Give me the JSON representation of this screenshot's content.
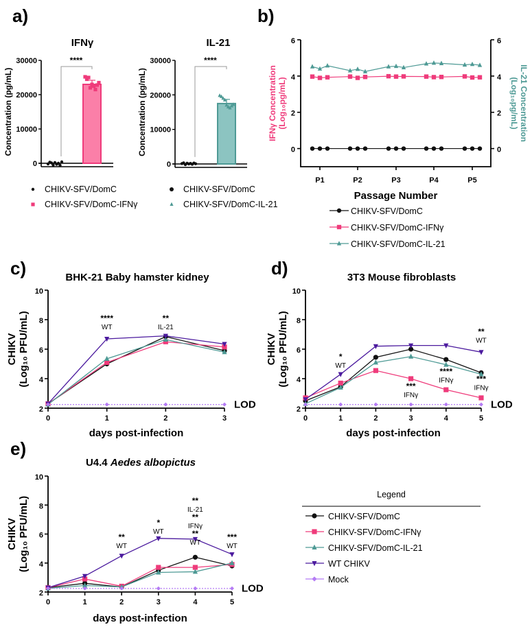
{
  "panels": [
    "a)",
    "b)",
    "c)",
    "d)",
    "e)"
  ],
  "colors": {
    "domc": "#111111",
    "ifng": "#ef3b7b",
    "il21": "#4e9a95",
    "wt": "#4b1a9e",
    "mock": "#b57cf5",
    "ifng_bar": "#fb7fa8",
    "il21_bar": "#8cc4c1"
  },
  "chart_data": [
    {
      "type": "bar",
      "title": "IFNγ",
      "ylabel": "Concentration (pg/mL)",
      "ylim": [
        -1000,
        30000
      ],
      "yticks": [
        "0",
        "10000",
        "20000",
        "30000"
      ],
      "categories": [
        "CHIKV-SFV/DomC",
        "CHIKV-SFV/DomC-IFNγ"
      ],
      "values": [
        0,
        23000
      ],
      "points": [
        [
          -200,
          300,
          100,
          -500,
          200,
          -300,
          0,
          -600,
          400
        ],
        [
          25200,
          24500,
          25000,
          22000,
          23000,
          22500,
          21500,
          22800,
          23500
        ]
      ],
      "significance": "****"
    },
    {
      "type": "bar",
      "title": "IL-21",
      "ylabel": "Concentration (pg/mL)",
      "ylim": [
        -1000,
        30000
      ],
      "yticks": [
        "0",
        "10000",
        "20000",
        "30000"
      ],
      "categories": [
        "CHIKV-SFV/DomC",
        "CHIKV-SFV/DomC-IL-21"
      ],
      "values": [
        0,
        17500
      ],
      "points": [
        [
          100,
          300,
          -200,
          200,
          0,
          150,
          -100,
          250,
          50
        ],
        [
          19800,
          19500,
          19000,
          18500,
          17000,
          16500,
          16200,
          16800,
          17200
        ]
      ],
      "significance": "****"
    },
    {
      "type": "line",
      "xlabel": "Passage Number",
      "ylabel_left": "IFNγ Concentration",
      "ylabel_left2": "(Log₁₀pg/mL)",
      "ylabel_right": "IL-21 Concentration",
      "ylabel_right2": "(Log₁₀pg/mL)",
      "ylim": [
        -1,
        6
      ],
      "yticks": [
        "0",
        "2",
        "4",
        "6"
      ],
      "categories": [
        "P1",
        "P2",
        "P3",
        "P4",
        "P5"
      ],
      "series": [
        {
          "name": "CHIKV-SFV/DomC",
          "replicates": [
            [
              0,
              0,
              0
            ],
            [
              0,
              0,
              0
            ],
            [
              0,
              0,
              0
            ],
            [
              0,
              0,
              0
            ],
            [
              0,
              0,
              0
            ]
          ]
        },
        {
          "name": "CHIKV-SFV/DomC-IFNγ",
          "replicates": [
            [
              3.97,
              3.9,
              3.93
            ],
            [
              3.97,
              3.9,
              3.95
            ],
            [
              3.99,
              3.97,
              3.98
            ],
            [
              3.97,
              3.94,
              3.95
            ],
            [
              3.98,
              3.92,
              3.93
            ]
          ]
        },
        {
          "name": "CHIKV-SFV/DomC-IL-21",
          "replicates": [
            [
              4.52,
              4.4,
              4.57
            ],
            [
              4.3,
              4.38,
              4.25
            ],
            [
              4.52,
              4.54,
              4.47
            ],
            [
              4.68,
              4.72,
              4.7
            ],
            [
              4.62,
              4.65,
              4.6
            ]
          ]
        }
      ]
    },
    {
      "type": "line",
      "title": "BHK-21 Baby hamster kidney",
      "xlabel": "days post-infection",
      "ylabel": "CHIKV",
      "ylabel2": "(Log₁₀ PFU/mL)",
      "ylim": [
        2,
        10
      ],
      "yticks": [
        "2",
        "4",
        "6",
        "8",
        "10"
      ],
      "x": [
        0,
        1,
        2,
        3
      ],
      "lod_label": "LOD",
      "series": [
        {
          "name": "CHIKV-SFV/DomC",
          "values": [
            2.3,
            5.0,
            6.85,
            5.9
          ]
        },
        {
          "name": "CHIKV-SFV/DomC-IFNγ",
          "values": [
            2.3,
            5.1,
            6.5,
            6.15
          ]
        },
        {
          "name": "CHIKV-SFV/DomC-IL-21",
          "values": [
            2.25,
            5.35,
            6.65,
            5.8
          ]
        },
        {
          "name": "WT CHIKV",
          "values": [
            2.3,
            6.7,
            6.9,
            6.35
          ]
        },
        {
          "name": "Mock",
          "values": [
            2.25,
            2.25,
            2.25,
            2.25
          ]
        }
      ],
      "annotations": [
        {
          "x": 1,
          "y": 7.9,
          "lines": [
            "****",
            "WT"
          ]
        },
        {
          "x": 2,
          "y": 7.9,
          "lines": [
            "**",
            "IL-21"
          ]
        }
      ]
    },
    {
      "type": "line",
      "title": "3T3 Mouse fibroblasts",
      "xlabel": "days post-infection",
      "ylabel": "CHIKV",
      "ylabel2": "(Log₁₀ PFU/mL)",
      "ylim": [
        2,
        10
      ],
      "yticks": [
        "2",
        "4",
        "6",
        "8",
        "10"
      ],
      "x": [
        0,
        1,
        2,
        3,
        4,
        5
      ],
      "lod_label": "LOD",
      "series": [
        {
          "name": "CHIKV-SFV/DomC",
          "values": [
            2.5,
            3.45,
            5.45,
            6.0,
            5.3,
            4.4
          ]
        },
        {
          "name": "CHIKV-SFV/DomC-IFNγ",
          "values": [
            2.7,
            3.7,
            4.55,
            4.0,
            3.25,
            2.7
          ]
        },
        {
          "name": "CHIKV-SFV/DomC-IL-21",
          "values": [
            2.3,
            3.4,
            5.1,
            5.5,
            4.95,
            4.3
          ]
        },
        {
          "name": "WT CHIKV",
          "values": [
            2.6,
            4.3,
            6.2,
            6.25,
            6.25,
            5.8
          ]
        },
        {
          "name": "Mock",
          "values": [
            2.25,
            2.25,
            2.25,
            2.25,
            2.25,
            2.25
          ]
        }
      ],
      "annotations": [
        {
          "x": 1,
          "y": 5.3,
          "lines": [
            "*",
            "WT"
          ]
        },
        {
          "x": 3,
          "y": 3.3,
          "lines": [
            "***",
            "IFNγ"
          ]
        },
        {
          "x": 4,
          "y": 4.3,
          "lines": [
            "****",
            "IFNγ"
          ]
        },
        {
          "x": 5,
          "y": 7.0,
          "lines": [
            "**",
            "WT"
          ]
        },
        {
          "x": 5,
          "y": 3.8,
          "lines": [
            "***",
            "IFNγ"
          ]
        }
      ]
    },
    {
      "type": "line",
      "title_prefix": "U4.4 ",
      "title_italic": "Aedes albopictus",
      "xlabel": "days post-infection",
      "ylabel": "CHIKV",
      "ylabel2": "(Log₁₀ PFU/mL)",
      "ylim": [
        2,
        10
      ],
      "yticks": [
        "2",
        "4",
        "6",
        "8",
        "10"
      ],
      "x": [
        0,
        1,
        2,
        3,
        4,
        5
      ],
      "lod_label": "LOD",
      "series": [
        {
          "name": "CHIKV-SFV/DomC",
          "values": [
            2.3,
            2.6,
            2.35,
            3.5,
            4.4,
            3.8
          ]
        },
        {
          "name": "CHIKV-SFV/DomC-IFNγ",
          "values": [
            2.3,
            2.9,
            2.4,
            3.7,
            3.7,
            3.9
          ]
        },
        {
          "name": "CHIKV-SFV/DomC-IL-21",
          "values": [
            2.25,
            2.45,
            2.35,
            3.35,
            3.4,
            4.0
          ]
        },
        {
          "name": "WT CHIKV",
          "values": [
            2.3,
            3.1,
            4.5,
            5.7,
            5.65,
            4.6
          ]
        },
        {
          "name": "Mock",
          "values": [
            2.25,
            2.25,
            2.25,
            2.25,
            2.25,
            2.25
          ]
        }
      ],
      "annotations": [
        {
          "x": 2,
          "y": 5.6,
          "lines": [
            "**",
            "WT"
          ]
        },
        {
          "x": 3,
          "y": 6.6,
          "lines": [
            "*",
            "WT"
          ]
        },
        {
          "x": 4,
          "y": 8.1,
          "lines": [
            "**",
            "IL-21",
            "**",
            "IFNγ",
            "**",
            "WT"
          ]
        },
        {
          "x": 5,
          "y": 5.6,
          "lines": [
            "***",
            "WT"
          ]
        }
      ]
    }
  ],
  "legend": {
    "title": "Legend",
    "items": [
      "CHIKV-SFV/DomC",
      "CHIKV-SFV/DomC-IFNγ",
      "CHIKV-SFV/DomC-IL-21",
      "WT CHIKV",
      "Mock"
    ]
  }
}
